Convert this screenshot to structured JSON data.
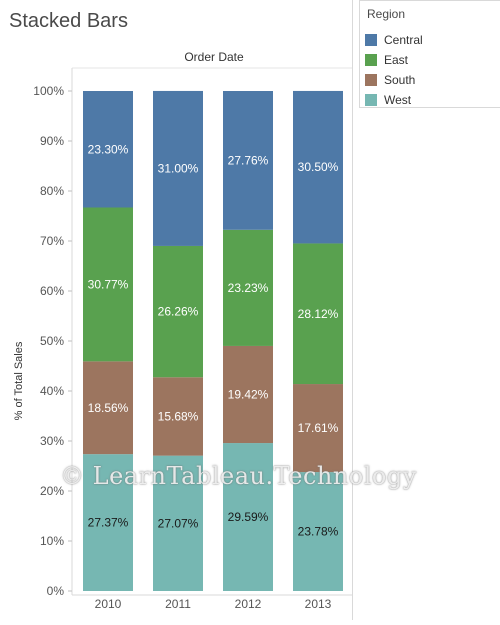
{
  "title": "Stacked Bars",
  "watermark": "© LearnTableau.Technology",
  "legend": {
    "title": "Region",
    "items": [
      {
        "label": "Central",
        "color": "#4e79a7"
      },
      {
        "label": "East",
        "color": "#59a14f"
      },
      {
        "label": "South",
        "color": "#9c755f"
      },
      {
        "label": "West",
        "color": "#76b7b2"
      }
    ]
  },
  "chart_data": {
    "type": "bar",
    "stacked": true,
    "title": "Order Date",
    "ylabel": "% of Total Sales",
    "xlabel": "",
    "categories": [
      "2010",
      "2011",
      "2012",
      "2013"
    ],
    "ylim": [
      0,
      100
    ],
    "yticks": [
      "0%",
      "10%",
      "20%",
      "30%",
      "40%",
      "50%",
      "60%",
      "70%",
      "80%",
      "90%",
      "100%"
    ],
    "series": [
      {
        "name": "West",
        "color": "#76b7b2",
        "values": [
          27.37,
          27.07,
          29.59,
          23.78
        ],
        "labels": [
          "27.37%",
          "27.07%",
          "29.59%",
          "23.78%"
        ],
        "label_color": "#1a1a1a"
      },
      {
        "name": "South",
        "color": "#9c755f",
        "values": [
          18.56,
          15.68,
          19.42,
          17.61
        ],
        "labels": [
          "18.56%",
          "15.68%",
          "19.42%",
          "17.61%"
        ],
        "label_color": "#ffffff"
      },
      {
        "name": "East",
        "color": "#59a14f",
        "values": [
          30.77,
          26.26,
          23.23,
          28.12
        ],
        "labels": [
          "30.77%",
          "26.26%",
          "23.23%",
          "28.12%"
        ],
        "label_color": "#ffffff"
      },
      {
        "name": "Central",
        "color": "#4e79a7",
        "values": [
          23.3,
          31.0,
          27.76,
          30.5
        ],
        "labels": [
          "23.30%",
          "31.00%",
          "27.76%",
          "30.50%"
        ],
        "label_color": "#ffffff"
      }
    ]
  }
}
